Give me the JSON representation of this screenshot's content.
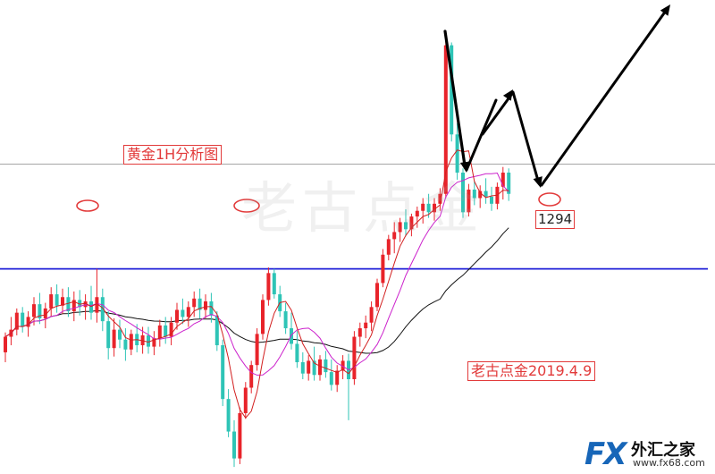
{
  "chart_data": {
    "type": "candlestick",
    "title": "黄金1H分析图",
    "annotation": "老古点金2019.4.9",
    "watermark": "老古点金",
    "ylim": [
      1279.5,
      1313
    ],
    "levels": {
      "support": 1294,
      "resistance": 1301.4,
      "support_label": "1294"
    },
    "candles_ohlc": [
      [
        1288.1,
        1289.5,
        1287.4,
        1289.2
      ],
      [
        1289.2,
        1290.6,
        1288.6,
        1289.7
      ],
      [
        1289.7,
        1291.2,
        1289.3,
        1290.9
      ],
      [
        1290.9,
        1291.3,
        1289.5,
        1289.9
      ],
      [
        1289.9,
        1291.0,
        1289.2,
        1290.6
      ],
      [
        1290.6,
        1292.0,
        1290.0,
        1291.5
      ],
      [
        1291.5,
        1292.3,
        1290.1,
        1290.5
      ],
      [
        1290.5,
        1291.6,
        1289.8,
        1291.2
      ],
      [
        1291.2,
        1292.7,
        1290.6,
        1292.2
      ],
      [
        1292.2,
        1292.9,
        1290.9,
        1291.4
      ],
      [
        1291.4,
        1292.6,
        1290.8,
        1292.0
      ],
      [
        1292.0,
        1292.7,
        1290.6,
        1291.0
      ],
      [
        1291.0,
        1292.4,
        1290.3,
        1291.8
      ],
      [
        1291.8,
        1292.5,
        1290.7,
        1291.3
      ],
      [
        1291.3,
        1292.2,
        1290.4,
        1291.7
      ],
      [
        1291.7,
        1292.8,
        1290.4,
        1290.9
      ],
      [
        1290.9,
        1294.0,
        1290.2,
        1292.0
      ],
      [
        1292.0,
        1292.6,
        1289.6,
        1290.3
      ],
      [
        1290.3,
        1291.0,
        1287.6,
        1288.4
      ],
      [
        1288.4,
        1290.5,
        1287.8,
        1289.7
      ],
      [
        1289.7,
        1290.4,
        1288.4,
        1289.0
      ],
      [
        1289.0,
        1289.8,
        1287.5,
        1288.3
      ],
      [
        1288.3,
        1289.7,
        1287.9,
        1289.4
      ],
      [
        1289.4,
        1290.1,
        1288.1,
        1288.6
      ],
      [
        1288.6,
        1289.9,
        1288.0,
        1289.3
      ],
      [
        1289.3,
        1289.9,
        1288.0,
        1288.5
      ],
      [
        1288.5,
        1289.6,
        1287.9,
        1289.1
      ],
      [
        1289.1,
        1290.4,
        1288.5,
        1290.0
      ],
      [
        1290.0,
        1290.6,
        1288.7,
        1289.2
      ],
      [
        1289.2,
        1290.6,
        1288.6,
        1290.2
      ],
      [
        1290.2,
        1291.6,
        1289.7,
        1291.1
      ],
      [
        1291.1,
        1291.9,
        1290.1,
        1290.6
      ],
      [
        1290.6,
        1291.7,
        1289.9,
        1291.3
      ],
      [
        1291.3,
        1292.4,
        1290.6,
        1291.9
      ],
      [
        1291.9,
        1292.6,
        1290.5,
        1291.1
      ],
      [
        1291.1,
        1292.2,
        1290.5,
        1291.7
      ],
      [
        1291.7,
        1292.3,
        1290.2,
        1290.7
      ],
      [
        1290.7,
        1291.0,
        1288.2,
        1288.6
      ],
      [
        1288.6,
        1289.0,
        1284.3,
        1284.8
      ],
      [
        1284.8,
        1285.5,
        1282.1,
        1282.5
      ],
      [
        1282.5,
        1283.3,
        1280.0,
        1280.6
      ],
      [
        1280.6,
        1284.2,
        1280.2,
        1283.8
      ],
      [
        1283.8,
        1286.0,
        1283.4,
        1285.6
      ],
      [
        1285.6,
        1287.5,
        1285.2,
        1287.2
      ],
      [
        1287.2,
        1289.8,
        1286.8,
        1289.4
      ],
      [
        1289.4,
        1292.2,
        1289.0,
        1291.8
      ],
      [
        1291.8,
        1294.1,
        1291.4,
        1293.7
      ],
      [
        1293.7,
        1294.0,
        1291.9,
        1292.2
      ],
      [
        1292.2,
        1292.8,
        1290.6,
        1291.0
      ],
      [
        1291.0,
        1291.6,
        1289.4,
        1289.8
      ],
      [
        1289.8,
        1290.9,
        1288.3,
        1288.7
      ],
      [
        1288.7,
        1289.6,
        1287.0,
        1287.4
      ],
      [
        1287.4,
        1288.1,
        1286.2,
        1286.6
      ],
      [
        1286.6,
        1287.9,
        1286.1,
        1287.5
      ],
      [
        1287.5,
        1288.5,
        1286.1,
        1286.5
      ],
      [
        1286.5,
        1287.9,
        1286.1,
        1287.6
      ],
      [
        1287.6,
        1288.2,
        1286.3,
        1286.7
      ],
      [
        1286.7,
        1287.6,
        1285.4,
        1285.8
      ],
      [
        1285.8,
        1287.2,
        1285.3,
        1286.8
      ],
      [
        1286.8,
        1287.9,
        1286.2,
        1287.5
      ],
      [
        1287.5,
        1288.0,
        1283.3,
        1286.2
      ],
      [
        1286.2,
        1289.6,
        1285.8,
        1289.2
      ],
      [
        1289.2,
        1290.2,
        1288.5,
        1289.8
      ],
      [
        1289.8,
        1290.7,
        1289.1,
        1290.2
      ],
      [
        1290.2,
        1291.7,
        1289.6,
        1291.3
      ],
      [
        1291.3,
        1293.3,
        1291.0,
        1293.0
      ],
      [
        1293.0,
        1295.4,
        1292.7,
        1295.0
      ],
      [
        1295.0,
        1296.4,
        1294.6,
        1296.1
      ],
      [
        1296.1,
        1297.3,
        1295.1,
        1296.6
      ],
      [
        1296.6,
        1297.6,
        1295.9,
        1297.3
      ],
      [
        1297.3,
        1298.2,
        1296.3,
        1296.8
      ],
      [
        1296.8,
        1297.9,
        1296.3,
        1297.7
      ],
      [
        1297.7,
        1298.4,
        1296.9,
        1298.1
      ],
      [
        1298.1,
        1299.0,
        1297.2,
        1298.6
      ],
      [
        1298.6,
        1299.3,
        1297.6,
        1298.0
      ],
      [
        1298.0,
        1299.0,
        1297.4,
        1298.6
      ],
      [
        1298.6,
        1299.7,
        1298.1,
        1299.3
      ],
      [
        1299.3,
        1310.2,
        1299.0,
        1309.8
      ],
      [
        1309.8,
        1310.0,
        1303.0,
        1303.5
      ],
      [
        1303.5,
        1304.3,
        1300.3,
        1300.8
      ],
      [
        1300.8,
        1301.1,
        1297.6,
        1298.0
      ],
      [
        1298.0,
        1300.0,
        1297.7,
        1299.6
      ],
      [
        1299.6,
        1300.2,
        1298.5,
        1299.0
      ],
      [
        1299.0,
        1299.9,
        1298.3,
        1299.5
      ],
      [
        1299.5,
        1300.4,
        1298.6,
        1299.1
      ],
      [
        1299.1,
        1299.8,
        1298.1,
        1298.6
      ],
      [
        1298.6,
        1300.1,
        1298.2,
        1299.8
      ],
      [
        1299.8,
        1301.2,
        1298.9,
        1300.8
      ],
      [
        1300.8,
        1301.1,
        1298.8,
        1299.3
      ]
    ]
  },
  "logo": {
    "fx": "FX",
    "name": "外汇之家",
    "url": "www.fx68.com"
  },
  "colors": {
    "up": "#e8232a",
    "down": "#2ec4b6",
    "ma_fast": "#d21f1f",
    "ma_mid": "#cc22cc",
    "ma_slow": "#111111",
    "support": "#2020d8",
    "resistance": "#a6a6a6",
    "arrow": "#000000",
    "marker": "#e23a3a"
  }
}
